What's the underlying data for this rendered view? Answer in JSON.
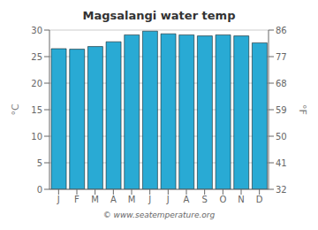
{
  "chart_data": {
    "type": "bar",
    "title": "Magsalangi water temp",
    "categories": [
      "J",
      "F",
      "M",
      "A",
      "M",
      "J",
      "J",
      "A",
      "S",
      "O",
      "N",
      "D"
    ],
    "values": [
      26.5,
      26.4,
      26.9,
      27.8,
      29.1,
      29.8,
      29.3,
      29.1,
      28.9,
      29.1,
      28.9,
      27.6
    ],
    "color": "#29aad4",
    "y_label": "°C",
    "ylim": [
      0,
      30
    ],
    "yticks": [
      0,
      5,
      10,
      15,
      20,
      25,
      30
    ],
    "y2_label": "°F",
    "y2lim": [
      32,
      86
    ],
    "y2ticks": [
      32,
      41,
      50,
      59,
      68,
      77,
      86
    ],
    "grid": true,
    "annotations": [
      "© www.seatemperature.org"
    ]
  }
}
